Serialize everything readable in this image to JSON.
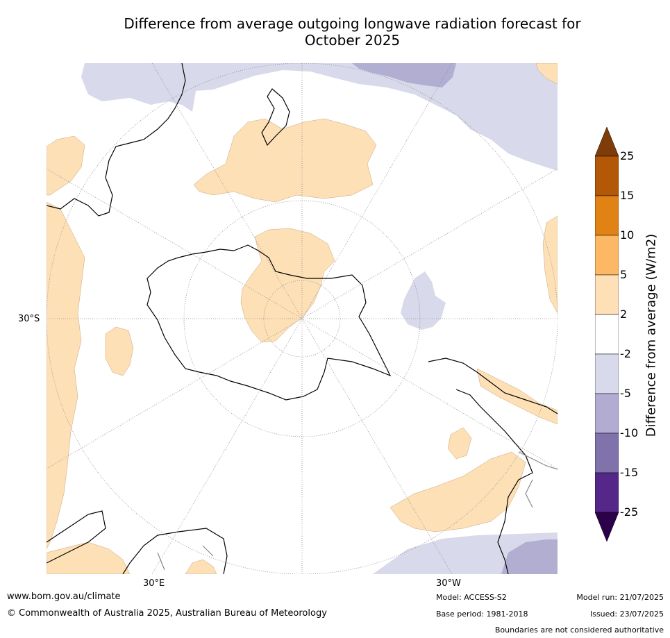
{
  "title": {
    "line1": "Difference from average outgoing longwave radiation forecast for",
    "line2": "October 2025"
  },
  "map": {
    "projection": "south-polar",
    "latitude_labels": [
      "30°S"
    ],
    "longitude_labels": [
      "30°E",
      "30°W"
    ],
    "colors": {
      "positive_light": "#fde0b6",
      "negative_light": "#d8d9ea",
      "negative_mid": "#b2aed2",
      "coastline": "#000000",
      "boundary": "#888888",
      "graticule": "#8a8a8a"
    }
  },
  "colorbar": {
    "label": "Difference from average (W/m2)",
    "ticks": [
      "25",
      "15",
      "10",
      "5",
      "2",
      "-2",
      "-5",
      "-10",
      "-15",
      "-25"
    ],
    "colors": [
      "#7f3b08",
      "#b35806",
      "#e08214",
      "#fdb863",
      "#fee0b6",
      "#ffffff",
      "#d8daeb",
      "#b2abd2",
      "#8073ac",
      "#542788",
      "#2d004b"
    ]
  },
  "footer": {
    "website": "www.bom.gov.au/climate",
    "copyright": "© Commonwealth of Australia 2025, Australian Bureau of Meteorology",
    "model": "Model: ACCESS-S2",
    "base_period": "Base period: 1981-2018",
    "model_run": "Model run: 21/07/2025",
    "issued": "Issued: 23/07/2025",
    "disclaimer": "Boundaries are not considered authoritative"
  }
}
